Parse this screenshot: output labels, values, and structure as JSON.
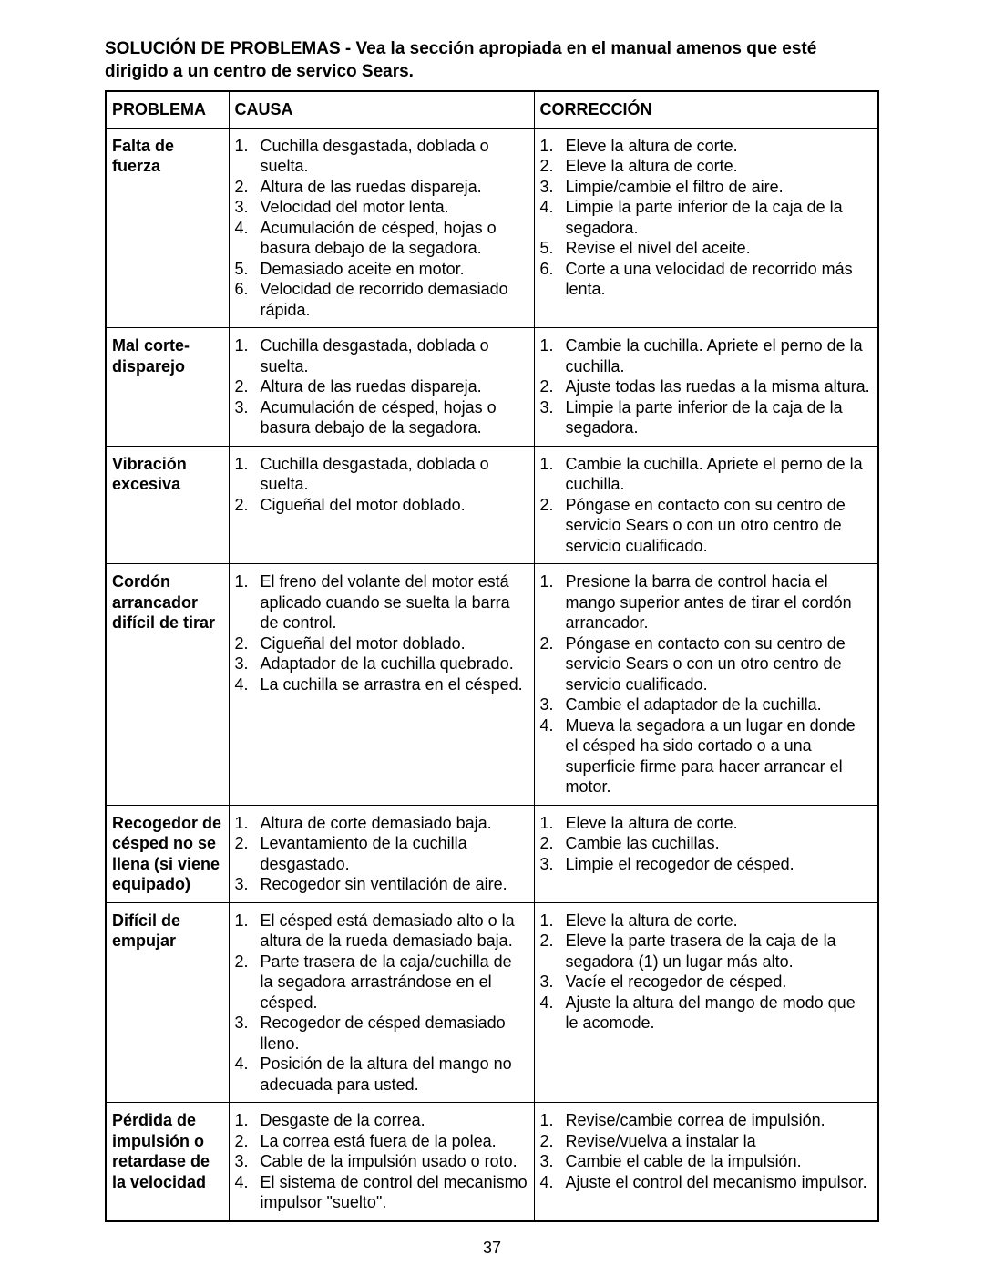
{
  "title": "SOLUCIÓN DE PROBLEMAS - Vea la sección apropiada en el manual amenos que esté dirigido a un centro de servico Sears.",
  "headers": {
    "problema": "PROBLEMA",
    "causa": "CAUSA",
    "correccion": "CORRECCIÓN"
  },
  "rows": [
    {
      "problema": "Falta de fuerza",
      "causas": [
        "Cuchilla desgastada, doblada o suelta.",
        "Altura de las ruedas dispareja.",
        "Velocidad del motor lenta.",
        "Acumulación de césped, hojas o basura debajo de la segadora.",
        "Demasiado aceite en motor.",
        "Velocidad de recorrido demasiado rápida."
      ],
      "correcciones": [
        "Eleve la altura de corte.",
        "Eleve la altura de corte.",
        "Limpie/cambie el filtro de aire.",
        "Limpie la parte inferior de la caja de la segadora.",
        "Revise el nivel del aceite.",
        "Corte a una velocidad de recorrido más lenta."
      ]
    },
    {
      "problema": "Mal corte-disparejo",
      "causas": [
        "Cuchilla desgastada, doblada o suelta.",
        "Altura de las ruedas dispareja.",
        "Acumulación de césped, hojas o basura debajo de la segadora."
      ],
      "correcciones": [
        "Cambie la cuchilla. Apriete el perno de la cuchilla.",
        "Ajuste todas las ruedas a la misma altura.",
        "Limpie la parte inferior de la caja de la segadora."
      ]
    },
    {
      "problema": "Vibración excesiva",
      "causas": [
        "Cuchilla desgastada, doblada o suelta.",
        "Cigueñal del motor doblado."
      ],
      "correcciones": [
        "Cambie la cuchilla. Apriete el perno de la cuchilla.",
        "Póngase en contacto con su centro de servicio Sears o con un otro centro de servicio cualificado."
      ]
    },
    {
      "problema": "Cordón arrancador difícil de tirar",
      "causas": [
        "El freno del volante del motor está aplicado cuando se suelta la barra de control.",
        "Cigueñal del motor doblado.",
        "Adaptador de la cuchilla quebrado.",
        "La cuchilla se arrastra en el césped."
      ],
      "correcciones": [
        "Presione la barra de control hacia el mango superior antes de tirar el cordón arrancador.",
        "Póngase en contacto con su centro de servicio Sears o con un otro centro de servicio cualificado.",
        "Cambie el adaptador de la cuchilla.",
        "Mueva la segadora a un lugar en donde el césped ha sido cortado o a una superficie firme para hacer arrancar el motor."
      ]
    },
    {
      "problema": "Recogedor de césped no se llena (si viene equipado)",
      "causas": [
        "Altura de corte demasiado baja.",
        "Levantamiento de la cuchilla desgastado.",
        "Recogedor sin ventilación de aire."
      ],
      "correcciones": [
        "Eleve la altura de corte.",
        "Cambie las cuchillas.",
        "Limpie el recogedor de césped."
      ]
    },
    {
      "problema": "Difícil de empujar",
      "causas": [
        "El césped está demasiado alto o la altura de la rueda demasiado baja.",
        "Parte trasera de la caja/cuchilla de la segadora arrastrándose en el césped.",
        "Recogedor de césped demasiado lleno.",
        "Posición de la altura del mango no adecuada para usted."
      ],
      "correcciones": [
        "Eleve la altura de corte.",
        "Eleve la parte trasera de la caja de la segadora (1) un lugar más alto.",
        "Vacíe el recogedor de césped.",
        "Ajuste la altura del mango de modo que le acomode."
      ]
    },
    {
      "problema": "Pérdida de impulsión o retardase de la velocidad",
      "causas": [
        "Desgaste de la correa.",
        "La correa está fuera de la polea.",
        "Cable de la impulsión usado o roto.",
        "El sistema de control del mecanismo impulsor \"suelto\"."
      ],
      "correcciones": [
        "Revise/cambie correa de impulsión.",
        "Revise/vuelva a instalar la",
        "Cambie  el cable de la impulsión.",
        "Ajuste el control del mecanismo impulsor."
      ]
    }
  ],
  "page_number": "37"
}
